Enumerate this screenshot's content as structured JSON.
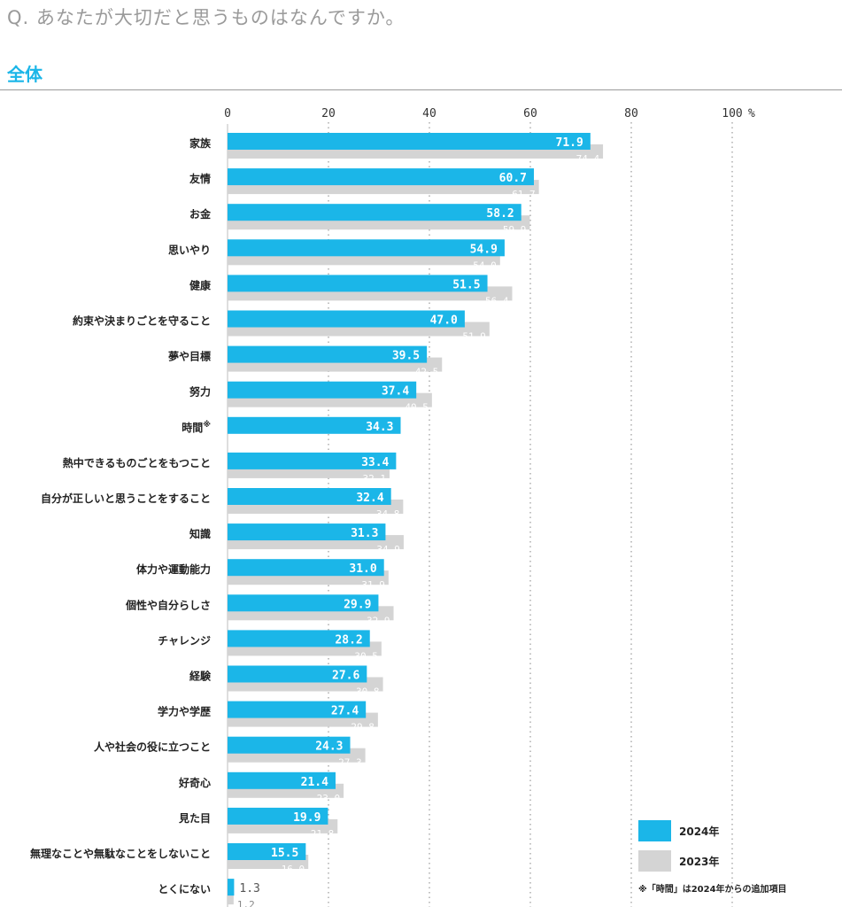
{
  "question": "Q. あなたが大切だと思うものはなんですか。",
  "section_title": "全体",
  "note": "※「時間」は2024年からの追加項目",
  "colors": {
    "series_2024": "#1bb6e8",
    "series_2023": "#d4d4d4",
    "accent": "#1bb6e8"
  },
  "chart_data": {
    "type": "bar",
    "orientation": "horizontal",
    "xlim": [
      0,
      100
    ],
    "x_ticks": [
      0,
      20,
      40,
      60,
      80,
      100
    ],
    "x_unit": "%",
    "grid": "dotted vertical",
    "legend_position": "bottom-right",
    "categories": [
      "家族",
      "友情",
      "お金",
      "思いやり",
      "健康",
      "約束や決まりごとを守ること",
      "夢や目標",
      "努力",
      "時間※",
      "熱中できるものごとをもつこと",
      "自分が正しいと思うことをすること",
      "知識",
      "体力や運動能力",
      "個性や自分らしさ",
      "チャレンジ",
      "経験",
      "学力や学歴",
      "人や社会の役に立つこと",
      "好奇心",
      "見た目",
      "無理なことや無駄なことをしないこと",
      "とくにない"
    ],
    "series": [
      {
        "name": "2024年",
        "values": [
          71.9,
          60.7,
          58.2,
          54.9,
          51.5,
          47.0,
          39.5,
          37.4,
          34.3,
          33.4,
          32.4,
          31.3,
          31.0,
          29.9,
          28.2,
          27.6,
          27.4,
          24.3,
          21.4,
          19.9,
          15.5,
          1.3
        ]
      },
      {
        "name": "2023年",
        "values": [
          74.4,
          61.7,
          59.9,
          54.0,
          56.4,
          51.9,
          42.5,
          40.5,
          null,
          32.1,
          34.8,
          34.9,
          31.9,
          32.9,
          30.5,
          30.8,
          29.8,
          27.3,
          23.0,
          21.8,
          16.0,
          1.2
        ]
      }
    ]
  }
}
